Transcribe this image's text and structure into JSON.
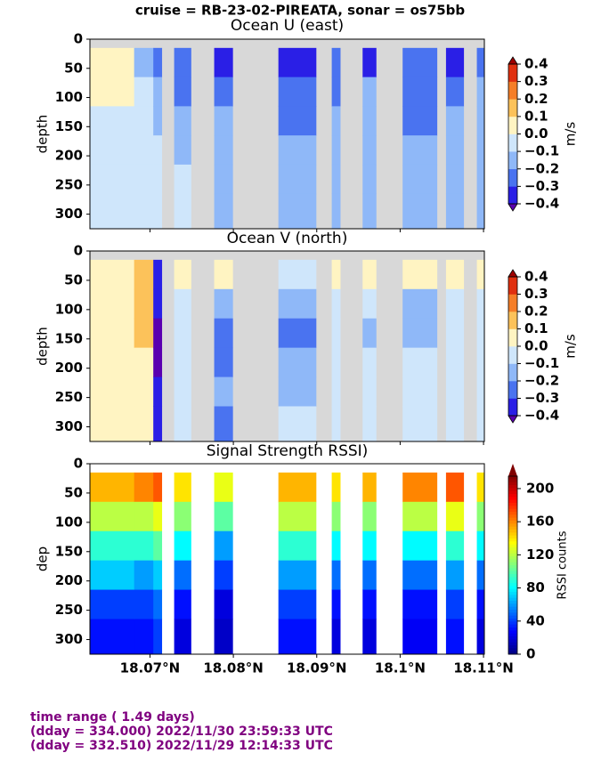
{
  "title": "cruise = RB-23-02-PIREATA,  sonar = os75bb",
  "footer": [
    "time range ( 1.49 days)",
    "(dday = 334.000) 2022/11/30 23:59:33 UTC",
    "(dday = 332.510) 2022/11/29 12:14:33 UTC"
  ],
  "chart_data": [
    {
      "type": "heatmap",
      "title": "Ocean U (east)",
      "ylabel": "depth",
      "background": "#d8d8d8",
      "xlim": [
        18.0628,
        18.1101
      ],
      "xticks": [
        18.07,
        18.08,
        18.09,
        18.1,
        18.11
      ],
      "ylim": [
        0,
        325
      ],
      "yticks": [
        0,
        50,
        100,
        150,
        200,
        250,
        300
      ],
      "depth_edges": [
        15,
        65,
        115,
        165,
        215,
        265,
        325
      ],
      "colorbar": {
        "label": "m/s",
        "levels": [
          -0.4,
          -0.3,
          -0.2,
          -0.1,
          0,
          0.1,
          0.2,
          0.3,
          0.4
        ],
        "colors": [
          "#2a1fe6",
          "#4a73f0",
          "#8fb8f8",
          "#cfe6fb",
          "#fff4c2",
          "#fcc25a",
          "#f57e28",
          "#e03010"
        ],
        "under": "#5a00b0",
        "over": "#a00000",
        "ticks": [
          {
            "value": 0.4,
            "label": "0.4"
          },
          {
            "value": 0.3,
            "label": "0.3"
          },
          {
            "value": 0.2,
            "label": "0.2"
          },
          {
            "value": 0.1,
            "label": "0.1"
          },
          {
            "value": 0,
            "label": "0.0"
          },
          {
            "value": -0.1,
            "label": "−0.1"
          },
          {
            "value": -0.2,
            "label": "−0.2"
          },
          {
            "value": -0.3,
            "label": "−0.3"
          },
          {
            "value": -0.4,
            "label": "−0.4"
          }
        ]
      },
      "segments": [
        {
          "lon": [
            18.0628,
            18.0681
          ],
          "values": [
            0.05,
            0.0,
            -0.05,
            -0.05,
            -0.05,
            -0.05
          ]
        },
        {
          "lon": [
            18.0681,
            18.0704
          ],
          "values": [
            -0.15,
            -0.1,
            -0.1,
            -0.05,
            -0.05,
            -0.05
          ]
        },
        {
          "lon": [
            18.0704,
            18.0714
          ],
          "values": [
            -0.25,
            -0.15,
            -0.15,
            -0.1,
            -0.1,
            -0.1
          ]
        },
        {
          "lon": [
            18.0729,
            18.0749
          ],
          "values": [
            -0.25,
            -0.25,
            -0.15,
            -0.15,
            -0.05,
            -0.05
          ]
        },
        {
          "lon": [
            18.0777,
            18.0799
          ],
          "values": [
            -0.35,
            -0.25,
            -0.15,
            -0.15,
            -0.15,
            -0.15
          ]
        },
        {
          "lon": [
            18.0854,
            18.0899
          ],
          "values": [
            -0.35,
            -0.25,
            -0.25,
            -0.2,
            -0.2,
            -0.15
          ]
        },
        {
          "lon": [
            18.0918,
            18.0928
          ],
          "values": [
            -0.25,
            -0.25,
            -0.15,
            -0.15,
            -0.15,
            -0.15
          ]
        },
        {
          "lon": [
            18.0955,
            18.0971
          ],
          "values": [
            -0.35,
            -0.15,
            -0.15,
            -0.15,
            -0.15,
            -0.15
          ]
        },
        {
          "lon": [
            18.1003,
            18.1044
          ],
          "values": [
            -0.25,
            -0.25,
            -0.25,
            -0.15,
            -0.15,
            -0.15
          ]
        },
        {
          "lon": [
            18.1055,
            18.1076
          ],
          "values": [
            -0.35,
            -0.25,
            -0.15,
            -0.15,
            -0.15,
            -0.15
          ]
        },
        {
          "lon": [
            18.1092,
            18.1101
          ],
          "values": [
            -0.25,
            -0.15,
            -0.15,
            -0.15,
            -0.15,
            -0.15
          ]
        }
      ]
    },
    {
      "type": "heatmap",
      "title": "Ocean V (north)",
      "ylabel": "depth",
      "background": "#d8d8d8",
      "xlim": [
        18.0628,
        18.1101
      ],
      "xticks": [
        18.07,
        18.08,
        18.09,
        18.1,
        18.11
      ],
      "ylim": [
        0,
        325
      ],
      "yticks": [
        0,
        50,
        100,
        150,
        200,
        250,
        300
      ],
      "depth_edges": [
        15,
        65,
        115,
        165,
        215,
        265,
        325
      ],
      "colorbar": {
        "label": "m/s",
        "levels": [
          -0.4,
          -0.3,
          -0.2,
          -0.1,
          0,
          0.1,
          0.2,
          0.3,
          0.4
        ],
        "colors": [
          "#2a1fe6",
          "#4a73f0",
          "#8fb8f8",
          "#cfe6fb",
          "#fff4c2",
          "#fcc25a",
          "#f57e28",
          "#e03010"
        ],
        "under": "#5a00b0",
        "over": "#a00000",
        "ticks": [
          {
            "value": 0.4,
            "label": "0.4"
          },
          {
            "value": 0.3,
            "label": "0.3"
          },
          {
            "value": 0.2,
            "label": "0.2"
          },
          {
            "value": 0.1,
            "label": "0.1"
          },
          {
            "value": 0,
            "label": "0.0"
          },
          {
            "value": -0.1,
            "label": "−0.1"
          },
          {
            "value": -0.2,
            "label": "−0.2"
          },
          {
            "value": -0.3,
            "label": "−0.3"
          },
          {
            "value": -0.4,
            "label": "−0.4"
          }
        ]
      },
      "segments": [
        {
          "lon": [
            18.0628,
            18.0681
          ],
          "values": [
            0.05,
            0.05,
            0.05,
            0.05,
            0.05,
            0.05
          ]
        },
        {
          "lon": [
            18.0681,
            18.0704
          ],
          "values": [
            0.15,
            0.15,
            0.15,
            0.05,
            0.05,
            0.05
          ]
        },
        {
          "lon": [
            18.0704,
            18.0714
          ],
          "values": [
            -0.35,
            -0.35,
            -0.45,
            -0.45,
            -0.35,
            -0.35
          ]
        },
        {
          "lon": [
            18.0729,
            18.0749
          ],
          "values": [
            0.05,
            -0.05,
            -0.05,
            -0.05,
            -0.05,
            -0.05
          ]
        },
        {
          "lon": [
            18.0777,
            18.0799
          ],
          "values": [
            0.05,
            -0.15,
            -0.25,
            -0.25,
            -0.15,
            -0.25
          ]
        },
        {
          "lon": [
            18.0854,
            18.0899
          ],
          "values": [
            -0.05,
            -0.15,
            -0.25,
            -0.15,
            -0.15,
            -0.05
          ]
        },
        {
          "lon": [
            18.0918,
            18.0928
          ],
          "values": [
            0.05,
            -0.05,
            -0.05,
            -0.05,
            -0.05,
            -0.05
          ]
        },
        {
          "lon": [
            18.0955,
            18.0971
          ],
          "values": [
            0.05,
            -0.05,
            -0.15,
            -0.05,
            -0.05,
            -0.05
          ]
        },
        {
          "lon": [
            18.1003,
            18.1044
          ],
          "values": [
            0.05,
            -0.15,
            -0.15,
            -0.05,
            -0.05,
            -0.05
          ]
        },
        {
          "lon": [
            18.1055,
            18.1076
          ],
          "values": [
            0.05,
            -0.05,
            -0.05,
            -0.05,
            -0.05,
            -0.05
          ]
        },
        {
          "lon": [
            18.1092,
            18.1101
          ],
          "values": [
            0.05,
            -0.05,
            -0.05,
            -0.05,
            -0.05,
            -0.05
          ]
        }
      ]
    },
    {
      "type": "heatmap",
      "title": "Signal Strength RSSI)",
      "ylabel": "dep",
      "background": "#ffffff",
      "xlim": [
        18.0628,
        18.1101
      ],
      "xticks": [
        {
          "value": 18.07,
          "label": "18.07°N"
        },
        {
          "value": 18.08,
          "label": "18.08°N"
        },
        {
          "value": 18.09,
          "label": "18.09°N"
        },
        {
          "value": 18.1,
          "label": "18.1°N"
        },
        {
          "value": 18.11,
          "label": "18.11°N"
        }
      ],
      "ylim": [
        0,
        325
      ],
      "yticks": [
        0,
        50,
        100,
        150,
        200,
        250,
        300
      ],
      "depth_edges": [
        15,
        65,
        115,
        165,
        215,
        265,
        325
      ],
      "colorbar": {
        "label": "RSSI counts",
        "colormap": "jet",
        "clim": [
          0,
          215
        ],
        "ticks": [
          0,
          40,
          80,
          120,
          160,
          200
        ]
      },
      "segments": [
        {
          "lon": [
            18.0628,
            18.0681
          ],
          "values": [
            150,
            120,
            90,
            70,
            40,
            30
          ]
        },
        {
          "lon": [
            18.0681,
            18.0704
          ],
          "values": [
            160,
            120,
            90,
            60,
            40,
            30
          ]
        },
        {
          "lon": [
            18.0704,
            18.0714
          ],
          "values": [
            170,
            130,
            100,
            70,
            50,
            40
          ]
        },
        {
          "lon": [
            18.0729,
            18.0749
          ],
          "values": [
            140,
            110,
            80,
            50,
            30,
            20
          ]
        },
        {
          "lon": [
            18.0777,
            18.0799
          ],
          "values": [
            130,
            100,
            60,
            40,
            20,
            15
          ]
        },
        {
          "lon": [
            18.0854,
            18.0899
          ],
          "values": [
            150,
            120,
            90,
            60,
            40,
            30
          ]
        },
        {
          "lon": [
            18.0918,
            18.0928
          ],
          "values": [
            140,
            110,
            80,
            50,
            30,
            20
          ]
        },
        {
          "lon": [
            18.0955,
            18.0971
          ],
          "values": [
            150,
            110,
            80,
            50,
            30,
            20
          ]
        },
        {
          "lon": [
            18.1003,
            18.1044
          ],
          "values": [
            160,
            120,
            80,
            50,
            30,
            25
          ]
        },
        {
          "lon": [
            18.1055,
            18.1076
          ],
          "values": [
            170,
            130,
            90,
            60,
            40,
            30
          ]
        },
        {
          "lon": [
            18.1092,
            18.1101
          ],
          "values": [
            140,
            110,
            80,
            50,
            30,
            20
          ]
        }
      ]
    }
  ]
}
